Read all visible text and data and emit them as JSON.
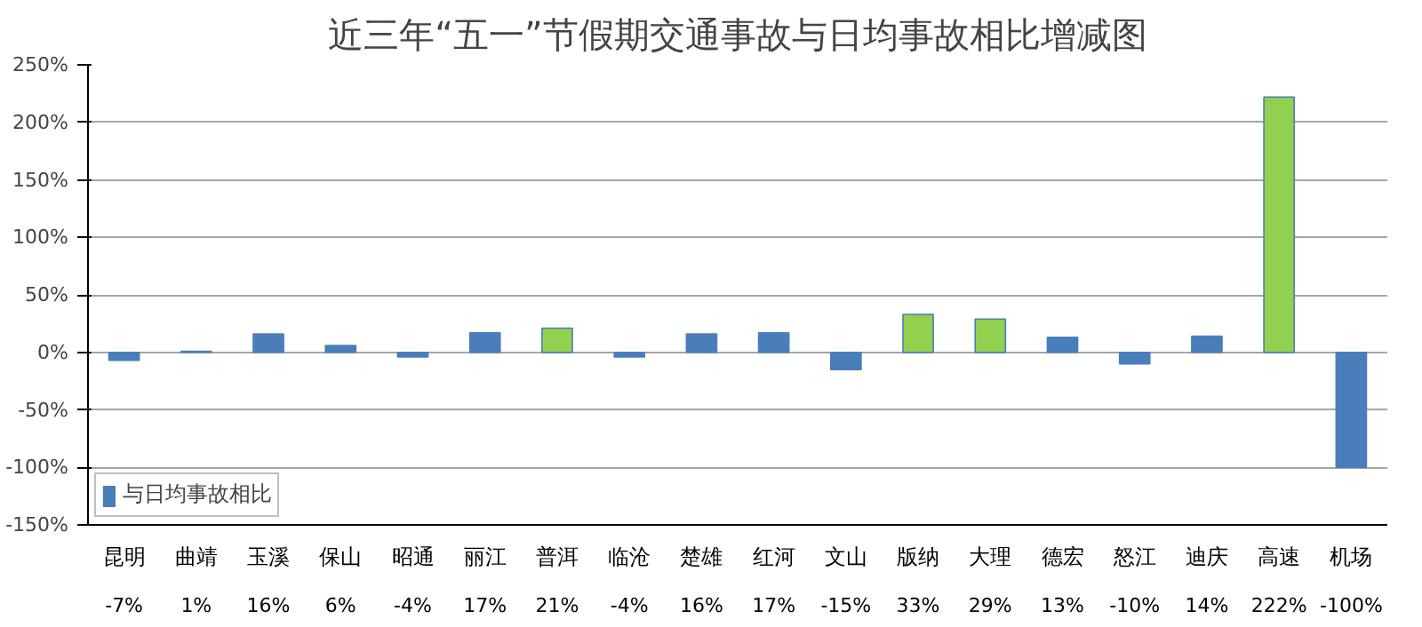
{
  "chart_data": {
    "type": "bar",
    "title": "近三年“五一”节假期交通事故与日均事故相比增减图",
    "categories": [
      "昆明",
      "曲靖",
      "玉溪",
      "保山",
      "昭通",
      "丽江",
      "普洱",
      "临沧",
      "楚雄",
      "红河",
      "文山",
      "版纳",
      "大理",
      "德宏",
      "怒江",
      "迪庆",
      "高速",
      "机场"
    ],
    "series": [
      {
        "name": "与日均事故相比",
        "color": "#4a7ebb",
        "values": [
          -7,
          1,
          16,
          6,
          -4,
          17,
          21,
          -4,
          16,
          17,
          -15,
          33,
          29,
          13,
          -10,
          14,
          222,
          -100
        ],
        "colors": [
          "#4a7ebb",
          "#4a7ebb",
          "#4a7ebb",
          "#4a7ebb",
          "#4a7ebb",
          "#4a7ebb",
          "#92d050",
          "#4a7ebb",
          "#4a7ebb",
          "#4a7ebb",
          "#4a7ebb",
          "#92d050",
          "#92d050",
          "#4a7ebb",
          "#4a7ebb",
          "#4a7ebb",
          "#92d050",
          "#4a7ebb"
        ],
        "value_labels": [
          "-7%",
          "1%",
          "16%",
          "6%",
          "-4%",
          "17%",
          "21%",
          "-4%",
          "16%",
          "17%",
          "-15%",
          "33%",
          "29%",
          "13%",
          "-10%",
          "14%",
          "222%",
          "-100%"
        ]
      }
    ],
    "ylim": [
      -150,
      250
    ],
    "yticks": [
      {
        "value": -150,
        "label": "-150%"
      },
      {
        "value": -100,
        "label": "-100%"
      },
      {
        "value": -50,
        "label": "-50%"
      },
      {
        "value": 0,
        "label": "0%"
      },
      {
        "value": 50,
        "label": "50%"
      },
      {
        "value": 100,
        "label": "100%"
      },
      {
        "value": 150,
        "label": "150%"
      },
      {
        "value": 200,
        "label": "200%"
      },
      {
        "value": 250,
        "label": "250%"
      }
    ],
    "grid": "y",
    "legend": "bottom left"
  }
}
